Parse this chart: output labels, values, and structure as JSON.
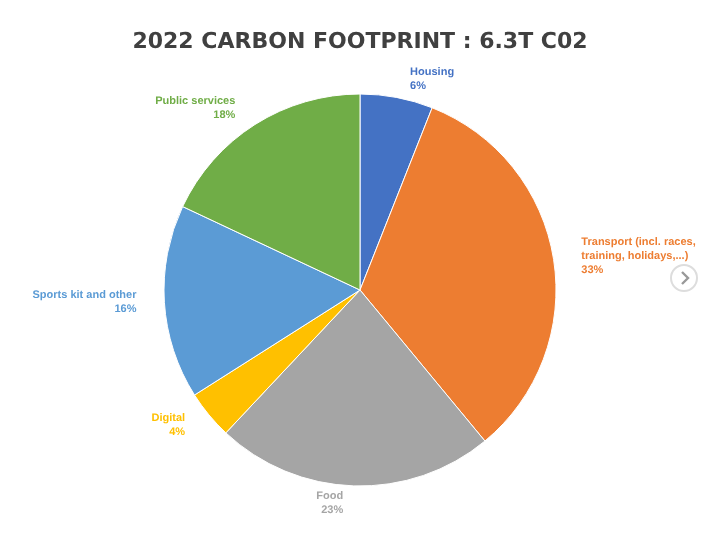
{
  "chart_data": {
    "type": "pie",
    "title": "2022 CARBON FOOTPRINT : 6.3T C02",
    "categories": [
      "Housing",
      "Transport (incl. races, training, holidays,...)",
      "Food",
      "Digital",
      "Sports kit and other",
      "Public services"
    ],
    "values": [
      6,
      33,
      23,
      4,
      16,
      18
    ],
    "value_labels": [
      "6%",
      "33%",
      "23%",
      "4%",
      "16%",
      "18%"
    ],
    "colors": [
      "#4472c4",
      "#ed7d31",
      "#a5a5a5",
      "#ffc000",
      "#5b9bd5",
      "#70ad47"
    ],
    "legend": false
  }
}
